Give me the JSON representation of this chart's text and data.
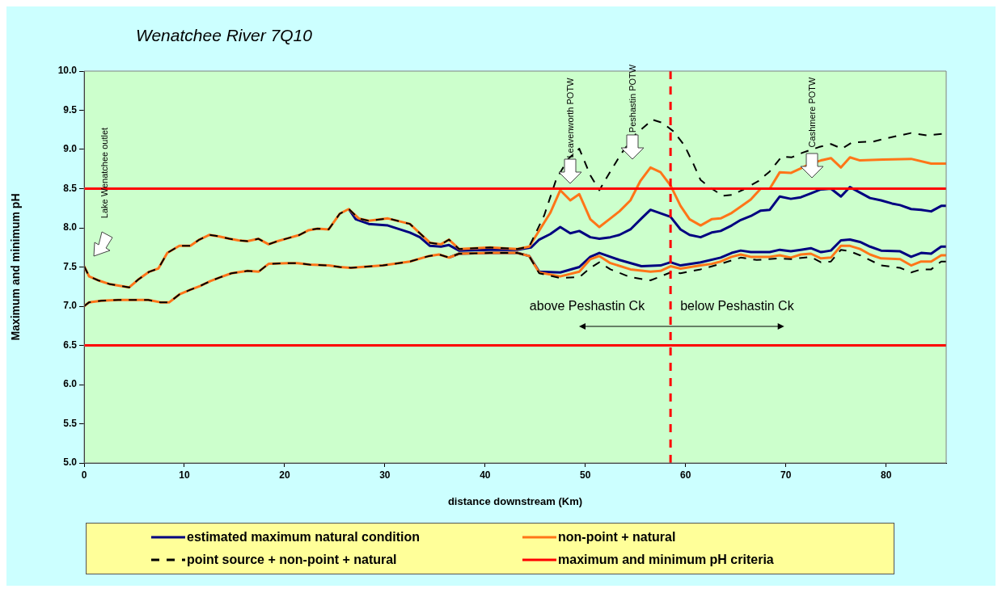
{
  "chart_data": {
    "type": "line",
    "title": "Wenatchee River 7Q10",
    "xlabel": "distance downstream (Km)",
    "ylabel": "Maximum and minimum pH",
    "xlim": [
      0,
      86
    ],
    "xticks": [
      0,
      10,
      20,
      30,
      40,
      50,
      60,
      70,
      80
    ],
    "ylim": [
      5,
      10
    ],
    "yticks": [
      {
        "value": 5,
        "label": "5.0"
      },
      {
        "value": 5.5,
        "label": "5.5"
      },
      {
        "value": 6,
        "label": "6.0"
      },
      {
        "value": 6.5,
        "label": "6.5"
      },
      {
        "value": 7,
        "label": "7.0"
      },
      {
        "value": 7.5,
        "label": "7.5"
      },
      {
        "value": 8,
        "label": "8.0"
      },
      {
        "value": 8.5,
        "label": "8.5"
      },
      {
        "value": 9,
        "label": "9.0"
      },
      {
        "value": 9.5,
        "label": "9.5"
      },
      {
        "value": 10,
        "label": "10.0"
      }
    ],
    "legend": "bottom",
    "series": [
      {
        "name": "estimated maximum natural condition",
        "color": "#000080",
        "line_style": "solid",
        "x": [
          26.4,
          27.1,
          28.4,
          30.3,
          32.5,
          33.5,
          34.5,
          35.6,
          36.4,
          37.4,
          40.5,
          43.2,
          44.6,
          45.4,
          46.5,
          47.5,
          48.5,
          49.4,
          50.5,
          51.4,
          52.5,
          53.4,
          54.5,
          55.6,
          56.5,
          58.5,
          59.5,
          60.4,
          61.5,
          62.6,
          63.5,
          64.6,
          65.5,
          66.5,
          67.5,
          68.4,
          69.4,
          70.5,
          71.5,
          72.5,
          73.5,
          74.5,
          75.5,
          76.4,
          77.4,
          78.4,
          79.5,
          80.6,
          81.4,
          82.5,
          83.5,
          84.5,
          85.5,
          86
        ],
        "values": [
          8.24,
          8.11,
          8.05,
          8.03,
          7.94,
          7.88,
          7.77,
          7.76,
          7.78,
          7.71,
          7.72,
          7.72,
          7.75,
          7.85,
          7.92,
          8.01,
          7.93,
          7.96,
          7.88,
          7.86,
          7.88,
          7.91,
          7.98,
          8.12,
          8.23,
          8.14,
          7.98,
          7.91,
          7.88,
          7.94,
          7.96,
          8.03,
          8.1,
          8.15,
          8.22,
          8.23,
          8.4,
          8.37,
          8.39,
          8.44,
          8.49,
          8.5,
          8.4,
          8.52,
          8.45,
          8.38,
          8.35,
          8.31,
          8.29,
          8.24,
          8.23,
          8.21,
          8.28,
          8.28
        ]
      },
      {
        "color": "#000080",
        "line_style": "solid",
        "x": [
          36.4,
          37.4,
          40.5,
          43.2,
          44.4,
          45.4,
          47.5,
          49.4,
          50.5,
          51.4,
          53.4,
          55.6,
          57.5,
          58.5,
          59.5,
          61.5,
          63.5,
          64.6,
          65.5,
          66.5,
          68.4,
          69.4,
          70.5,
          71.5,
          72.5,
          73.5,
          74.5,
          75.5,
          76.4,
          77.4,
          78.4,
          79.5,
          81.4,
          82.5,
          83.5,
          84.5,
          85.5,
          86
        ],
        "values": [
          7.62,
          7.67,
          7.68,
          7.68,
          7.64,
          7.44,
          7.43,
          7.5,
          7.63,
          7.68,
          7.59,
          7.51,
          7.52,
          7.56,
          7.52,
          7.56,
          7.62,
          7.68,
          7.71,
          7.69,
          7.69,
          7.72,
          7.7,
          7.72,
          7.74,
          7.69,
          7.71,
          7.84,
          7.85,
          7.82,
          7.76,
          7.71,
          7.7,
          7.63,
          7.68,
          7.67,
          7.76,
          7.76
        ]
      },
      {
        "name": "non-point + natural",
        "color": "#ff7518",
        "line_style": "solid",
        "x": [
          0,
          0.5,
          1.4,
          2.6,
          4.5,
          5.4,
          6.5,
          7.4,
          8.3,
          9.5,
          10.6,
          11.5,
          12.5,
          13.5,
          14.5,
          15.4,
          16.3,
          17.4,
          18.4,
          19.3,
          20.4,
          21.5,
          22.4,
          23.3,
          24.4,
          25.5,
          26.4,
          27.4,
          28.4,
          30.3,
          32.5,
          33.5,
          34.5,
          35.6,
          36.4,
          37.4,
          40.5,
          43.2,
          44.4,
          46.5,
          47.5,
          48.5,
          49.4,
          50.5,
          51.4,
          52.5,
          53.4,
          54.5,
          55.5,
          56.5,
          57.5,
          58.5,
          59.5,
          60.4,
          61.5,
          62.6,
          63.5,
          64.6,
          66.5,
          67.5,
          68.4,
          69.4,
          70.5,
          71.5,
          72.5,
          73.5,
          74.5,
          75.5,
          76.4,
          77.4,
          79.7,
          82.5,
          84.5,
          86
        ],
        "values": [
          7.51,
          7.38,
          7.33,
          7.28,
          7.24,
          7.34,
          7.44,
          7.48,
          7.68,
          7.77,
          7.77,
          7.85,
          7.91,
          7.89,
          7.86,
          7.84,
          7.83,
          7.86,
          7.79,
          7.83,
          7.87,
          7.91,
          7.97,
          7.99,
          7.98,
          8.18,
          8.24,
          8.12,
          8.09,
          8.12,
          8.05,
          7.93,
          7.81,
          7.79,
          7.85,
          7.73,
          7.75,
          7.73,
          7.76,
          8.19,
          8.48,
          8.35,
          8.43,
          8.11,
          8.01,
          8.12,
          8.21,
          8.35,
          8.6,
          8.77,
          8.71,
          8.54,
          8.28,
          8.11,
          8.03,
          8.11,
          8.12,
          8.19,
          8.36,
          8.5,
          8.5,
          8.71,
          8.7,
          8.76,
          8.82,
          8.86,
          8.89,
          8.77,
          8.9,
          8.86,
          8.87,
          8.88,
          8.82,
          8.82
        ]
      },
      {
        "color": "#ff7518",
        "line_style": "solid",
        "x": [
          0,
          0.5,
          1.7,
          3.4,
          4.5,
          6.4,
          7.6,
          8.5,
          9.5,
          10.6,
          11.6,
          12.6,
          13.6,
          14.7,
          16.3,
          17.4,
          18.4,
          20.3,
          21.3,
          22.5,
          24.4,
          25.5,
          26.6,
          29.8,
          32.5,
          34.4,
          35.4,
          36.4,
          37.4,
          40.5,
          43.2,
          44.4,
          45.4,
          47.5,
          49.4,
          50.5,
          51.4,
          52.5,
          54.5,
          56.5,
          57.5,
          58.5,
          59.5,
          61.5,
          62.6,
          63.5,
          64.6,
          65.5,
          66.5,
          68.4,
          69.4,
          70.5,
          71.5,
          72.5,
          73.5,
          74.5,
          75.5,
          76.4,
          77.4,
          78.4,
          79.5,
          81.4,
          82.5,
          83.5,
          84.5,
          85.5,
          86
        ],
        "values": [
          7.0,
          7.05,
          7.07,
          7.08,
          7.08,
          7.08,
          7.05,
          7.05,
          7.15,
          7.21,
          7.26,
          7.32,
          7.37,
          7.42,
          7.45,
          7.44,
          7.54,
          7.55,
          7.55,
          7.53,
          7.52,
          7.5,
          7.49,
          7.52,
          7.57,
          7.64,
          7.66,
          7.62,
          7.67,
          7.68,
          7.68,
          7.64,
          7.43,
          7.38,
          7.44,
          7.6,
          7.64,
          7.55,
          7.47,
          7.44,
          7.45,
          7.51,
          7.48,
          7.52,
          7.54,
          7.57,
          7.63,
          7.66,
          7.63,
          7.63,
          7.65,
          7.62,
          7.66,
          7.67,
          7.61,
          7.62,
          7.77,
          7.77,
          7.73,
          7.66,
          7.61,
          7.6,
          7.52,
          7.57,
          7.57,
          7.65,
          7.65
        ]
      },
      {
        "name": "point source + non-point + natural",
        "color": "#000000",
        "line_style": "dashed",
        "x": [
          0,
          0.5,
          1.4,
          2.6,
          4.5,
          5.4,
          6.5,
          7.4,
          8.3,
          9.5,
          10.6,
          11.5,
          12.5,
          13.5,
          14.5,
          15.4,
          16.3,
          17.4,
          18.4,
          19.3,
          20.4,
          21.5,
          22.4,
          23.3,
          24.4,
          25.5,
          26.4,
          27.4,
          28.4,
          30.3,
          32.5,
          33.5,
          34.5,
          35.6,
          36.4,
          37.4,
          40.5,
          43.2,
          44.4,
          45.9,
          47.1,
          48.3,
          49.4,
          50.5,
          51.4,
          52.5,
          53.6,
          55.0,
          56.7,
          57.7,
          58.8,
          59.9,
          60.8,
          61.5,
          62.6,
          63.7,
          64.6,
          65.8,
          67.3,
          68.4,
          69.6,
          70.6,
          71.7,
          73.3,
          74.5,
          75.6,
          76.6,
          78.7,
          80.3,
          82.5,
          84.1,
          85.7,
          86
        ],
        "values": [
          7.51,
          7.38,
          7.33,
          7.28,
          7.24,
          7.34,
          7.44,
          7.48,
          7.68,
          7.77,
          7.77,
          7.85,
          7.91,
          7.89,
          7.86,
          7.84,
          7.83,
          7.86,
          7.79,
          7.83,
          7.87,
          7.91,
          7.97,
          7.99,
          7.98,
          8.18,
          8.24,
          8.12,
          8.09,
          8.12,
          8.05,
          7.93,
          7.81,
          7.79,
          7.85,
          7.73,
          7.75,
          7.73,
          7.76,
          8.16,
          8.62,
          8.88,
          9.01,
          8.67,
          8.48,
          8.72,
          8.95,
          9.19,
          9.38,
          9.34,
          9.23,
          9.05,
          8.81,
          8.61,
          8.5,
          8.41,
          8.42,
          8.49,
          8.6,
          8.72,
          8.91,
          8.9,
          8.96,
          9.03,
          9.07,
          9.01,
          9.09,
          9.1,
          9.15,
          9.21,
          9.18,
          9.2,
          9.2
        ]
      },
      {
        "color": "#000000",
        "line_style": "dashed",
        "x": [
          0,
          0.5,
          1.7,
          3.4,
          4.5,
          6.4,
          7.6,
          8.5,
          9.5,
          10.6,
          11.6,
          12.6,
          13.6,
          14.7,
          16.3,
          17.4,
          18.4,
          20.3,
          21.3,
          22.5,
          24.4,
          25.5,
          26.6,
          29.8,
          32.5,
          34.4,
          35.4,
          36.4,
          37.4,
          40.5,
          43.2,
          44.4,
          45.4,
          47.5,
          49.4,
          50.5,
          51.4,
          52.5,
          54.5,
          56.5,
          58.5,
          59.5,
          61.5,
          63.5,
          65.5,
          67.1,
          69.4,
          70.5,
          72.5,
          73.5,
          74.5,
          75.5,
          76.4,
          77.4,
          79.5,
          81.4,
          82.5,
          83.5,
          84.5,
          85.5,
          86
        ],
        "values": [
          7.0,
          7.05,
          7.07,
          7.08,
          7.08,
          7.08,
          7.05,
          7.05,
          7.15,
          7.21,
          7.26,
          7.32,
          7.37,
          7.42,
          7.45,
          7.44,
          7.54,
          7.55,
          7.55,
          7.53,
          7.52,
          7.5,
          7.49,
          7.52,
          7.57,
          7.64,
          7.66,
          7.62,
          7.67,
          7.68,
          7.68,
          7.64,
          7.42,
          7.36,
          7.37,
          7.49,
          7.56,
          7.47,
          7.37,
          7.33,
          7.43,
          7.42,
          7.47,
          7.54,
          7.62,
          7.59,
          7.61,
          7.6,
          7.63,
          7.56,
          7.57,
          7.72,
          7.7,
          7.65,
          7.52,
          7.49,
          7.43,
          7.47,
          7.47,
          7.57,
          7.57
        ]
      },
      {
        "name": "maximum and minimum pH criteria",
        "color": "#ff0000",
        "line_style": "solid",
        "x": [
          0,
          86
        ],
        "values": [
          8.5,
          8.5
        ]
      },
      {
        "color": "#ff0000",
        "line_style": "solid",
        "x": [
          0,
          86
        ],
        "values": [
          6.5,
          6.5
        ]
      }
    ],
    "ref_lines": [
      {
        "axis": "x",
        "value": 58.5,
        "color": "#ff0000",
        "line_style": "dashed"
      }
    ],
    "annotations": [
      "Lake Wenatchee outlet",
      "Leavenworth POTW",
      "Peshastin POTW",
      "Cashmere POTW",
      "above Peshastin Ck",
      "below Peshastin Ck"
    ]
  }
}
